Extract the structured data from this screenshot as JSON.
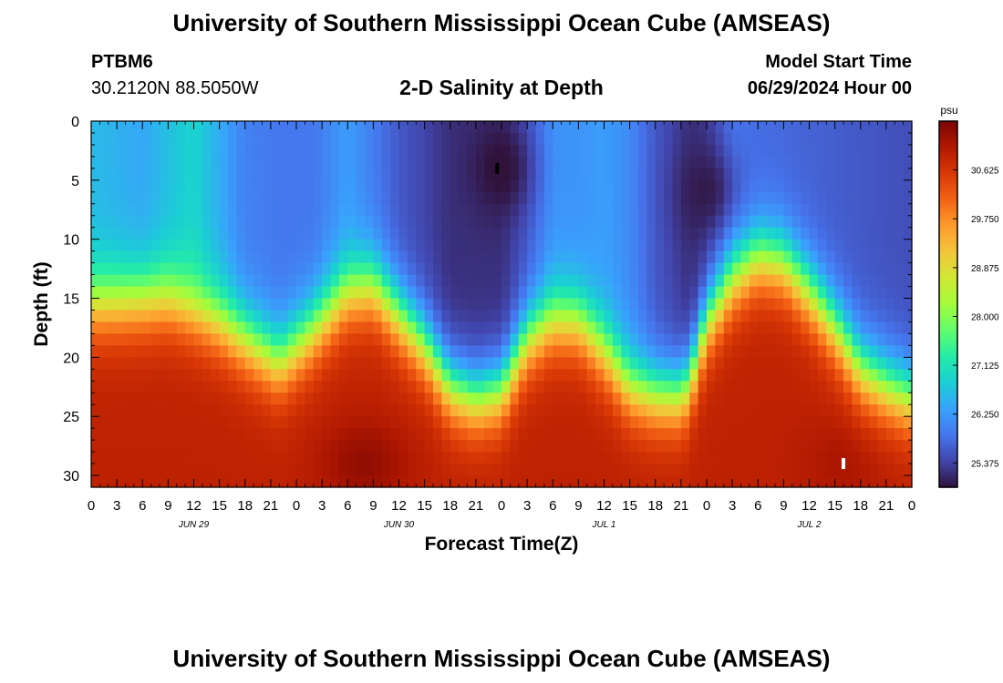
{
  "header": {
    "title": "University of Southern Mississippi Ocean Cube (AMSEAS)",
    "station": "PTBM6",
    "coordinates": "30.2120N  88.5050W",
    "subtitle": "2-D Salinity at Depth",
    "model_start_label": "Model Start Time",
    "model_start_value": "06/29/2024 Hour 00"
  },
  "footer": {
    "title": "University of Southern Mississippi Ocean Cube (AMSEAS)"
  },
  "chart_data": {
    "type": "heatmap",
    "title": "2-D Salinity at Depth",
    "xlabel": "Forecast Time(Z)",
    "ylabel": "Depth (ft)",
    "x_range_hours": [
      0,
      96
    ],
    "y_range_ft": [
      0,
      31
    ],
    "x_tick_labels": [
      "0",
      "3",
      "6",
      "9",
      "12",
      "15",
      "18",
      "21",
      "0",
      "3",
      "6",
      "9",
      "12",
      "15",
      "18",
      "21",
      "0",
      "3",
      "6",
      "9",
      "12",
      "15",
      "18",
      "21",
      "0",
      "3",
      "6",
      "9",
      "12",
      "15",
      "18",
      "21",
      "0"
    ],
    "day_labels": [
      "JUN 29",
      "JUN 30",
      "JUL 1",
      "JUL 2"
    ],
    "y_ticks": [
      0,
      5,
      10,
      15,
      20,
      25,
      30
    ],
    "colorbar": {
      "unit": "psu",
      "min": 24.94,
      "max": 31.5,
      "tick_labels": [
        "30.625",
        "29.750",
        "28.875",
        "28.000",
        "27.125",
        "26.250",
        "25.375"
      ],
      "colors": [
        "#30123b",
        "#4145ab",
        "#4675ed",
        "#39a2fc",
        "#1bcfd4",
        "#24eca6",
        "#61fc6c",
        "#a4fc3b",
        "#d1e835",
        "#f3c63a",
        "#fe9b2d",
        "#f36315",
        "#d93806",
        "#b11901",
        "#7a0402"
      ]
    },
    "interface_depth_ft": {
      "hours": [
        0,
        9,
        15,
        22,
        25,
        30,
        33,
        39,
        42,
        45,
        48,
        51,
        54,
        57,
        60,
        63,
        66,
        69,
        70,
        72,
        75,
        78,
        81,
        84,
        87,
        90,
        93,
        96
      ],
      "values": [
        15.5,
        15.0,
        17.0,
        20.5,
        18.5,
        14.5,
        14.0,
        19.0,
        22.5,
        23.5,
        22.8,
        18.5,
        16.8,
        17.0,
        19.5,
        22.5,
        23.2,
        23.2,
        22.0,
        17.0,
        13.5,
        11.5,
        12.0,
        14.5,
        17.5,
        21.0,
        22.5,
        23.5
      ]
    },
    "surface_salinity_psu": {
      "hours": [
        0,
        6,
        12,
        18,
        22,
        26,
        30,
        36,
        42,
        48,
        51,
        54,
        57,
        60,
        63,
        66,
        70,
        72,
        75,
        78,
        84,
        90,
        96
      ],
      "values": [
        26.6,
        26.4,
        26.9,
        26.0,
        25.9,
        25.9,
        26.3,
        25.6,
        25.2,
        25.2,
        25.6,
        26.2,
        26.2,
        26.3,
        26.1,
        25.6,
        25.2,
        25.3,
        25.9,
        25.8,
        25.7,
        25.6,
        25.5
      ]
    },
    "deep_salinity_psu": 30.9,
    "deep_maxima": [
      {
        "hour": 32,
        "depth_ft": 29,
        "salinity_psu": 31.3
      },
      {
        "hour": 88,
        "depth_ft": 29,
        "salinity_psu": 31.1
      }
    ],
    "low_salinity_cores": [
      {
        "hour": 48,
        "depth_ft": 4,
        "salinity_psu": 24.9
      },
      {
        "hour": 72,
        "depth_ft": 6,
        "salinity_psu": 25.0
      }
    ],
    "markers": [
      {
        "hour": 47.5,
        "depth_ft": 4,
        "color": "#000000"
      },
      {
        "hour": 88.0,
        "depth_ft": 29,
        "color": "#ffffff"
      }
    ]
  }
}
